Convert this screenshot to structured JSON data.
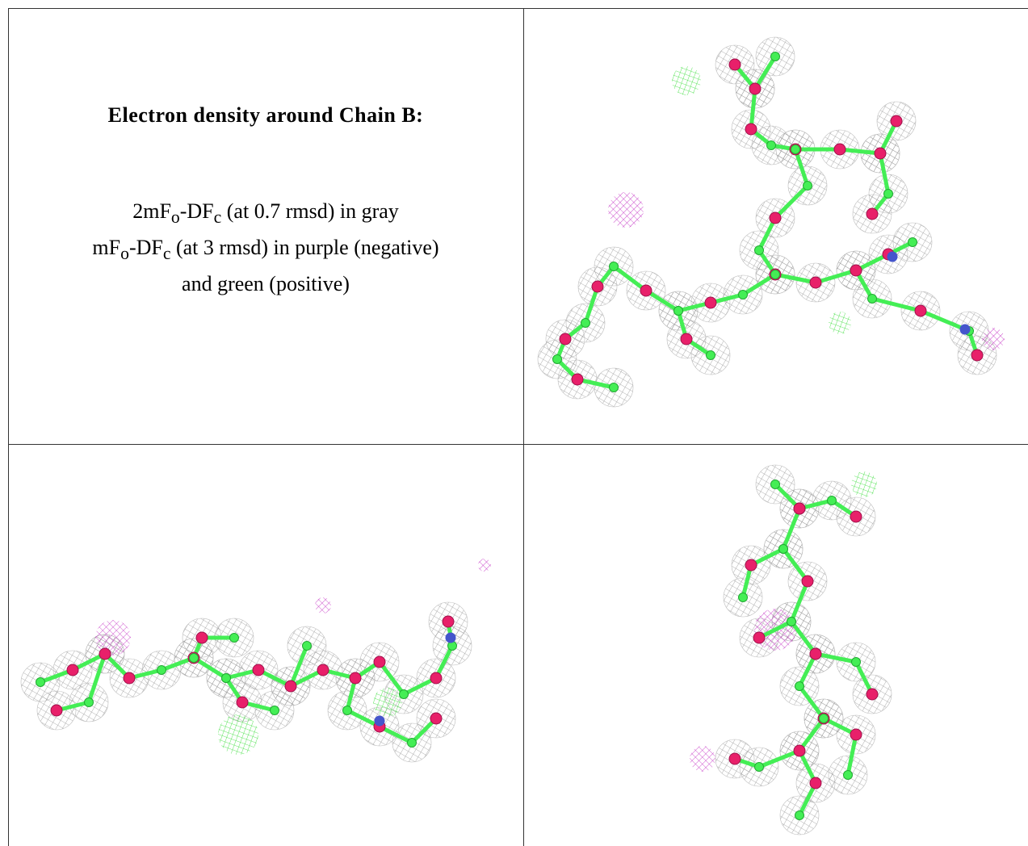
{
  "caption": {
    "title": "Electron density around Chain B:",
    "lines": [
      [
        "2mF",
        "o",
        "-DF",
        "c",
        " (at 0.7 rmsd) in gray"
      ],
      [
        "mF",
        "o",
        "-DF",
        "c",
        " (at 3 rmsd) in purple (negative)"
      ],
      [
        "and green (positive)"
      ]
    ]
  }
}
